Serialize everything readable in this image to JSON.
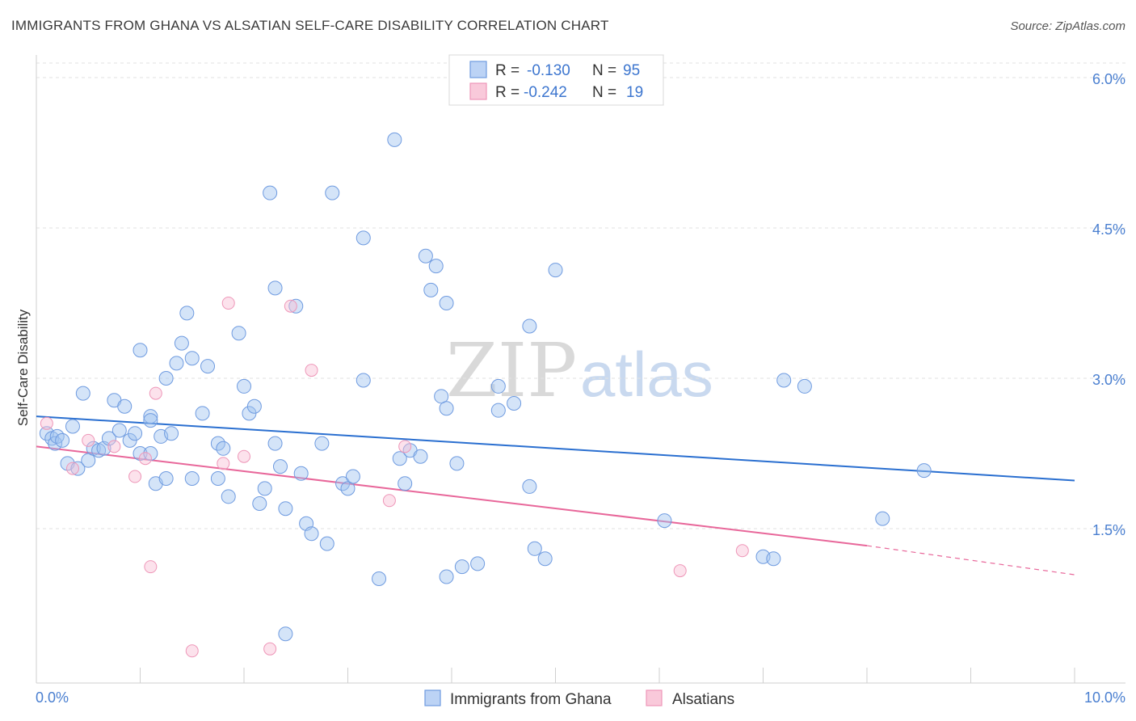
{
  "title": "IMMIGRANTS FROM GHANA VS ALSATIAN SELF-CARE DISABILITY CORRELATION CHART",
  "source": "Source: ZipAtlas.com",
  "watermark": {
    "zip": "ZIP",
    "atlas": "atlas"
  },
  "legend_top": [
    {
      "r_label": "R =",
      "r_value": "-0.130",
      "n_label": "N =",
      "n_value": "95"
    },
    {
      "r_label": "R =",
      "r_value": "-0.242",
      "n_label": "N =",
      "n_value": "19"
    }
  ],
  "chart_data": {
    "type": "scatter",
    "title": "IMMIGRANTS FROM GHANA VS ALSATIAN SELF-CARE DISABILITY CORRELATION CHART",
    "xlabel": "",
    "ylabel": "Self-Care Disability",
    "xlim": [
      0,
      10
    ],
    "ylim": [
      0,
      6.2
    ],
    "x_tick_labels": [
      "0.0%",
      "10.0%"
    ],
    "y_ticks": [
      1.5,
      3.0,
      4.5,
      6.0
    ],
    "y_tick_labels": [
      "1.5%",
      "3.0%",
      "4.5%",
      "6.0%"
    ],
    "grid": true,
    "legend_position": "bottom-center",
    "colors": {
      "ghana": "#5b8fe0",
      "alsatian": "#f08ab0",
      "ghana_line": "#2a6fd0",
      "alsatian_line": "#e8679a"
    },
    "series": [
      {
        "name": "Immigrants from Ghana",
        "trendline": {
          "x0": 0,
          "y0": 2.62,
          "x1": 10,
          "y1": 1.98
        },
        "points": [
          [
            0.1,
            2.45
          ],
          [
            0.15,
            2.4
          ],
          [
            0.18,
            2.35
          ],
          [
            0.2,
            2.42
          ],
          [
            0.25,
            2.38
          ],
          [
            0.3,
            2.15
          ],
          [
            0.35,
            2.52
          ],
          [
            0.4,
            2.1
          ],
          [
            0.45,
            2.85
          ],
          [
            0.5,
            2.18
          ],
          [
            0.55,
            2.3
          ],
          [
            0.6,
            2.28
          ],
          [
            0.65,
            2.3
          ],
          [
            0.7,
            2.4
          ],
          [
            0.75,
            2.78
          ],
          [
            0.8,
            2.48
          ],
          [
            0.85,
            2.72
          ],
          [
            0.9,
            2.38
          ],
          [
            0.95,
            2.45
          ],
          [
            1.0,
            2.25
          ],
          [
            1.0,
            3.28
          ],
          [
            1.1,
            2.62
          ],
          [
            1.1,
            2.58
          ],
          [
            1.1,
            2.25
          ],
          [
            1.15,
            1.95
          ],
          [
            1.2,
            2.42
          ],
          [
            1.25,
            3.0
          ],
          [
            1.25,
            2.0
          ],
          [
            1.3,
            2.45
          ],
          [
            1.35,
            3.15
          ],
          [
            1.4,
            3.35
          ],
          [
            1.45,
            3.65
          ],
          [
            1.5,
            3.2
          ],
          [
            1.5,
            2.0
          ],
          [
            1.6,
            2.65
          ],
          [
            1.65,
            3.12
          ],
          [
            1.75,
            2.0
          ],
          [
            1.75,
            2.35
          ],
          [
            1.8,
            2.3
          ],
          [
            1.85,
            1.82
          ],
          [
            1.95,
            3.45
          ],
          [
            2.0,
            2.92
          ],
          [
            2.05,
            2.65
          ],
          [
            2.1,
            2.72
          ],
          [
            2.15,
            1.75
          ],
          [
            2.2,
            1.9
          ],
          [
            2.3,
            3.9
          ],
          [
            2.25,
            4.85
          ],
          [
            2.3,
            2.35
          ],
          [
            2.35,
            2.12
          ],
          [
            2.4,
            1.7
          ],
          [
            2.5,
            3.72
          ],
          [
            2.55,
            2.05
          ],
          [
            2.6,
            1.55
          ],
          [
            2.65,
            1.45
          ],
          [
            2.75,
            2.35
          ],
          [
            2.8,
            1.35
          ],
          [
            2.85,
            4.85
          ],
          [
            2.95,
            1.95
          ],
          [
            3.0,
            1.9
          ],
          [
            3.05,
            2.02
          ],
          [
            3.15,
            4.4
          ],
          [
            3.15,
            2.98
          ],
          [
            3.45,
            5.38
          ],
          [
            3.5,
            2.2
          ],
          [
            3.55,
            1.95
          ],
          [
            3.6,
            2.28
          ],
          [
            3.7,
            2.22
          ],
          [
            3.75,
            4.22
          ],
          [
            3.8,
            3.88
          ],
          [
            3.85,
            4.12
          ],
          [
            3.9,
            2.82
          ],
          [
            3.95,
            2.7
          ],
          [
            3.95,
            3.75
          ],
          [
            4.05,
            2.15
          ],
          [
            4.1,
            1.12
          ],
          [
            4.25,
            1.15
          ],
          [
            4.45,
            2.92
          ],
          [
            4.45,
            2.68
          ],
          [
            4.6,
            2.75
          ],
          [
            4.75,
            1.92
          ],
          [
            4.75,
            3.52
          ],
          [
            4.8,
            1.3
          ],
          [
            4.9,
            1.2
          ],
          [
            5.0,
            4.08
          ],
          [
            6.05,
            1.58
          ],
          [
            7.0,
            1.22
          ],
          [
            7.1,
            1.2
          ],
          [
            7.2,
            2.98
          ],
          [
            7.4,
            2.92
          ],
          [
            8.15,
            1.6
          ],
          [
            8.55,
            2.08
          ],
          [
            3.3,
            1.0
          ],
          [
            3.95,
            1.02
          ],
          [
            2.4,
            0.45
          ]
        ]
      },
      {
        "name": "Alsatians",
        "trendline": {
          "x0": 0,
          "y0": 2.32,
          "x1": 8.0,
          "y1": 1.33,
          "dashed_to_x": 10,
          "dashed_to_y": 1.04
        },
        "points": [
          [
            0.1,
            2.55
          ],
          [
            0.35,
            2.1
          ],
          [
            0.5,
            2.38
          ],
          [
            0.75,
            2.32
          ],
          [
            0.95,
            2.02
          ],
          [
            1.05,
            2.2
          ],
          [
            1.1,
            1.12
          ],
          [
            1.15,
            2.85
          ],
          [
            1.5,
            0.28
          ],
          [
            1.8,
            2.15
          ],
          [
            1.85,
            3.75
          ],
          [
            2.0,
            2.22
          ],
          [
            2.25,
            0.3
          ],
          [
            2.45,
            3.72
          ],
          [
            2.65,
            3.08
          ],
          [
            3.4,
            1.78
          ],
          [
            3.55,
            2.32
          ],
          [
            6.2,
            1.08
          ],
          [
            6.8,
            1.28
          ]
        ]
      }
    ]
  },
  "legend_bottom": [
    "Immigrants from Ghana",
    "Alsatians"
  ]
}
